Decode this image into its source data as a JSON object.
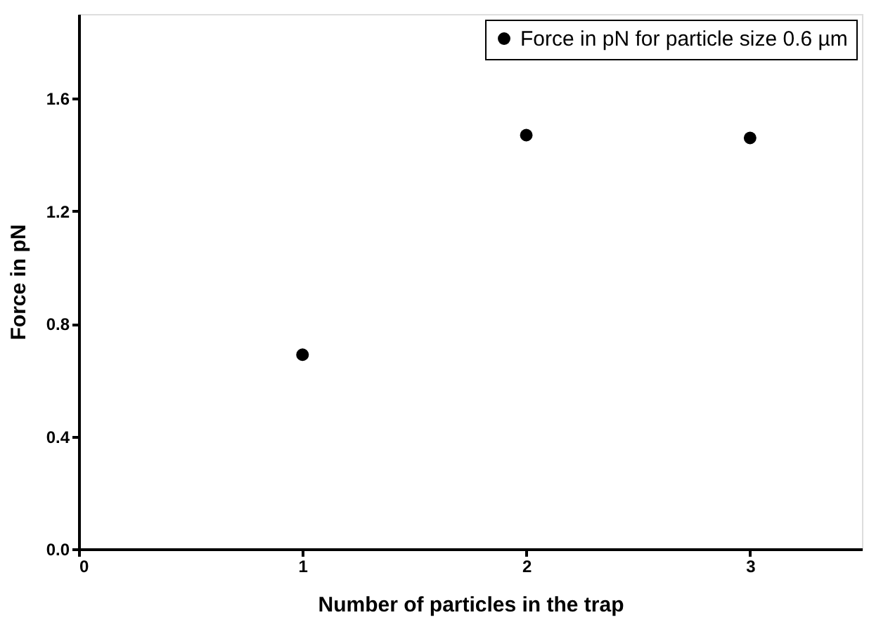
{
  "chart_data": {
    "type": "scatter",
    "xlabel": "Number of particles in the trap",
    "ylabel": "Force in pN",
    "x": [
      1,
      2,
      3
    ],
    "series": [
      {
        "name": "Force in pN for particle size 0.6 µm",
        "color": "#000000",
        "values": [
          0.69,
          1.47,
          1.46
        ]
      }
    ],
    "xlim": [
      0,
      3.5
    ],
    "xticks": [
      0,
      1,
      2,
      3
    ],
    "ylim": [
      0,
      1.9
    ],
    "yticks": [
      {
        "value": 0,
        "label": "0.0"
      },
      {
        "value": 0.4,
        "label": "0.4"
      },
      {
        "value": 0.8,
        "label": "0.8"
      },
      {
        "value": 1.2,
        "label": "1.2"
      },
      {
        "value": 1.6,
        "label": "1.6"
      }
    ],
    "grid": false,
    "legend": "top right",
    "marker": "circle"
  }
}
